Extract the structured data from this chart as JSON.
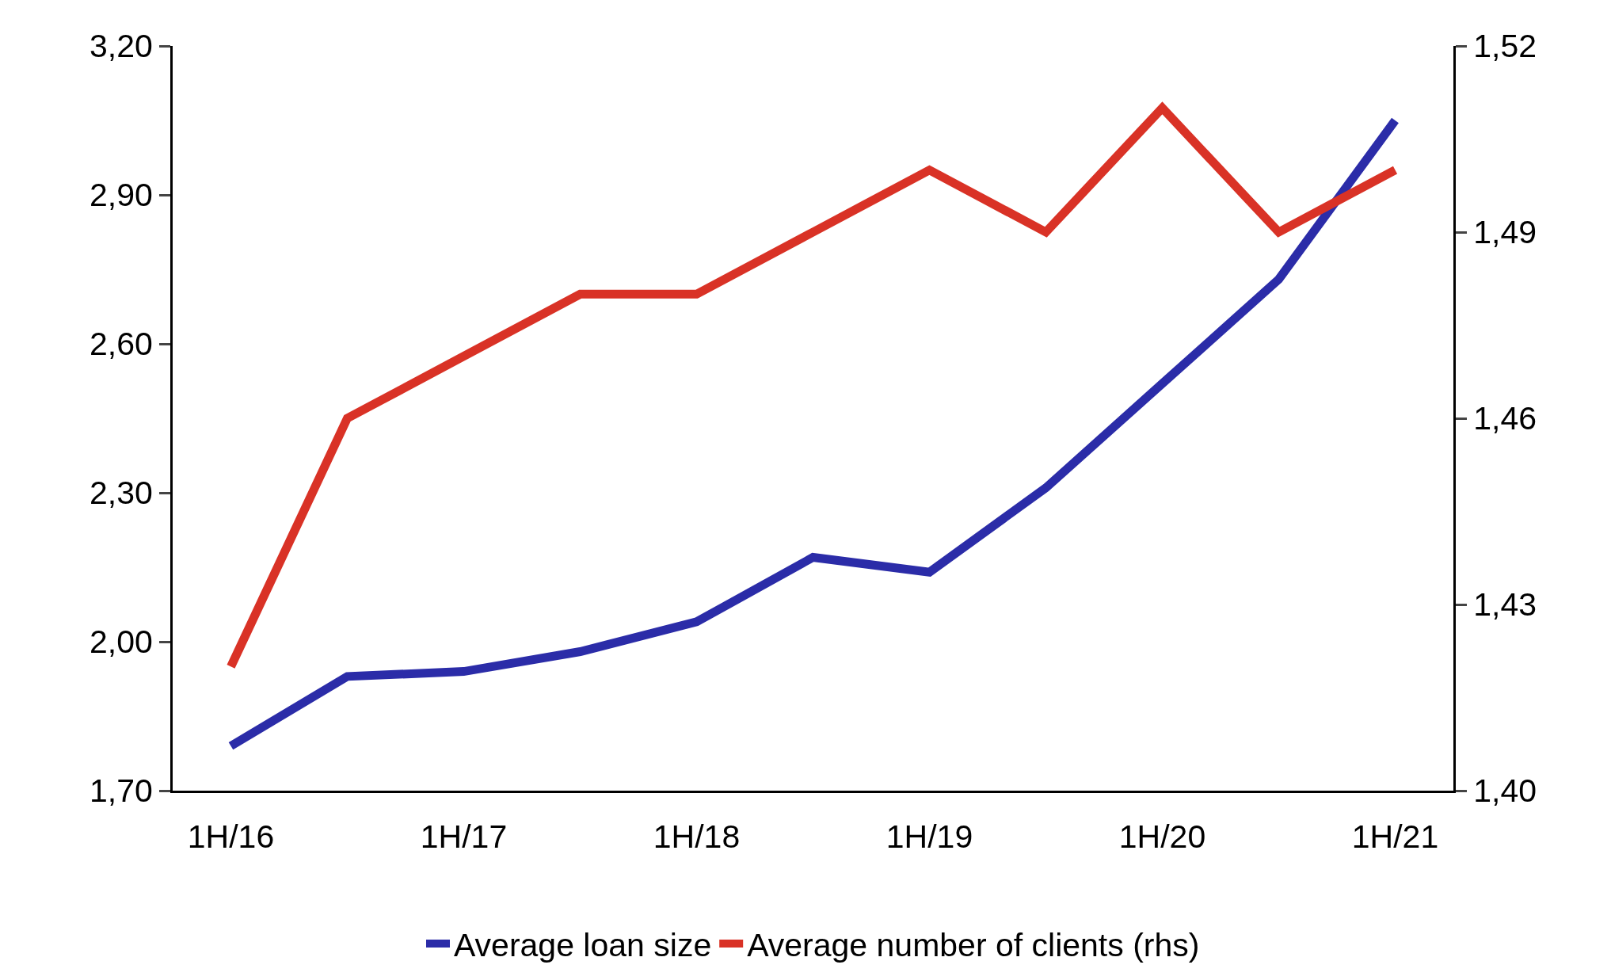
{
  "chart_data": {
    "type": "line",
    "categories": [
      "1H/16",
      null,
      "1H/17",
      null,
      "1H/18",
      null,
      "1H/19",
      null,
      "1H/20",
      null,
      "1H/21"
    ],
    "series": [
      {
        "name": "Average loan size",
        "color": "#2b2ca8",
        "values": [
          1.79,
          1.93,
          1.94,
          1.98,
          2.04,
          2.17,
          2.14,
          2.31,
          2.52,
          2.73,
          3.05
        ]
      },
      {
        "name": "Average number of clients (rhs)",
        "color": "#d93226",
        "axis": "y2",
        "values": [
          1.42,
          1.46,
          1.47,
          1.48,
          1.48,
          1.49,
          1.5,
          1.49,
          1.51,
          1.49,
          1.5
        ]
      }
    ],
    "ylim": [
      1.7,
      3.2
    ],
    "yticks": [
      {
        "value": 1.7,
        "label": "1,70"
      },
      {
        "value": 2.0,
        "label": "2,00"
      },
      {
        "value": 2.3,
        "label": "2,30"
      },
      {
        "value": 2.6,
        "label": "2,60"
      },
      {
        "value": 2.9,
        "label": "2,90"
      },
      {
        "value": 3.2,
        "label": "3,20"
      }
    ],
    "y2lim": [
      1.4,
      1.52
    ],
    "y2ticks": [
      {
        "value": 1.4,
        "label": "1,40"
      },
      {
        "value": 1.43,
        "label": "1,43"
      },
      {
        "value": 1.46,
        "label": "1,46"
      },
      {
        "value": 1.49,
        "label": "1,49"
      },
      {
        "value": 1.52,
        "label": "1,52"
      }
    ],
    "grid": false,
    "legend": "bottom",
    "marker": "none",
    "line_style": "solid"
  }
}
